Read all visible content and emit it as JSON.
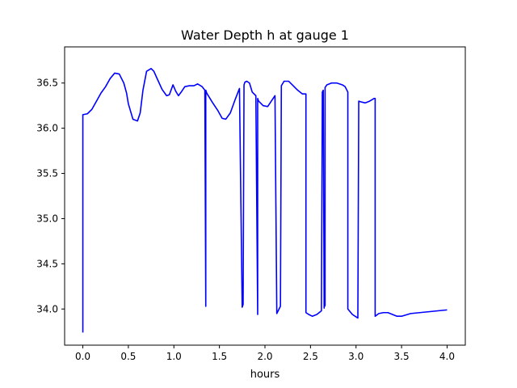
{
  "chart_data": {
    "type": "line",
    "title": "Water Depth h at gauge 1",
    "xlabel": "hours",
    "ylabel": "",
    "xlim": [
      -0.2,
      4.2
    ],
    "ylim": [
      33.6,
      36.9
    ],
    "xticks": [
      0.0,
      0.5,
      1.0,
      1.5,
      2.0,
      2.5,
      3.0,
      3.5,
      4.0
    ],
    "xtick_labels": [
      "0.0",
      "0.5",
      "1.0",
      "1.5",
      "2.0",
      "2.5",
      "3.0",
      "3.5",
      "4.0"
    ],
    "yticks": [
      34.0,
      34.5,
      35.0,
      35.5,
      36.0,
      36.5
    ],
    "ytick_labels": [
      "34.0",
      "34.5",
      "35.0",
      "35.5",
      "36.0",
      "36.5"
    ],
    "grid": false,
    "line_color": "#0000ff",
    "series": [
      {
        "x": [
          0.0,
          0.0,
          0.05,
          0.1,
          0.15,
          0.2,
          0.25,
          0.3,
          0.35,
          0.4,
          0.45,
          0.48,
          0.5,
          0.55,
          0.6,
          0.63,
          0.66,
          0.7,
          0.75,
          0.78,
          0.82,
          0.87,
          0.92,
          0.95,
          0.99,
          1.02,
          1.05,
          1.08,
          1.12,
          1.17,
          1.22,
          1.26,
          1.31,
          1.34,
          1.35,
          1.35,
          1.36,
          1.42,
          1.48,
          1.53,
          1.57,
          1.62,
          1.67,
          1.72,
          1.75,
          1.76,
          1.77,
          1.78,
          1.8,
          1.83,
          1.86,
          1.9,
          1.92,
          1.92,
          1.93,
          1.98,
          2.03,
          2.07,
          2.11,
          2.13,
          2.13,
          2.17,
          2.18,
          2.21,
          2.26,
          2.31,
          2.36,
          2.41,
          2.45,
          2.45,
          2.48,
          2.52,
          2.57,
          2.62,
          2.63,
          2.64,
          2.65,
          2.65,
          2.66,
          2.66,
          2.68,
          2.73,
          2.79,
          2.85,
          2.88,
          2.91,
          2.91,
          2.96,
          3.02,
          3.02,
          3.03,
          3.06,
          3.1,
          3.15,
          3.2,
          3.21,
          3.21,
          3.25,
          3.3,
          3.35,
          3.4,
          3.45,
          3.5,
          3.6,
          3.7,
          3.8,
          3.9,
          4.0
        ],
        "y": [
          33.74,
          36.15,
          36.16,
          36.21,
          36.3,
          36.39,
          36.46,
          36.55,
          36.61,
          36.6,
          36.5,
          36.39,
          36.27,
          36.1,
          36.08,
          36.17,
          36.42,
          36.63,
          36.66,
          36.63,
          36.54,
          36.43,
          36.36,
          36.37,
          36.48,
          36.41,
          36.36,
          36.4,
          36.46,
          36.47,
          36.47,
          36.49,
          36.46,
          36.42,
          34.03,
          36.42,
          36.39,
          36.29,
          36.2,
          36.11,
          36.1,
          36.17,
          36.31,
          36.44,
          34.02,
          34.05,
          36.48,
          36.51,
          36.52,
          36.5,
          36.4,
          36.36,
          33.94,
          36.33,
          36.3,
          36.25,
          36.24,
          36.3,
          36.36,
          33.95,
          33.95,
          34.03,
          36.47,
          36.52,
          36.52,
          36.47,
          36.42,
          36.38,
          36.38,
          33.96,
          33.94,
          33.92,
          33.94,
          33.98,
          36.4,
          36.42,
          34.01,
          34.02,
          34.04,
          36.45,
          36.48,
          36.5,
          36.5,
          36.48,
          36.46,
          36.4,
          34.0,
          33.94,
          33.9,
          33.9,
          36.3,
          36.29,
          36.28,
          36.3,
          36.33,
          36.33,
          33.92,
          33.95,
          33.96,
          33.96,
          33.94,
          33.92,
          33.92,
          33.95,
          33.96,
          33.97,
          33.98,
          33.99
        ]
      }
    ]
  }
}
